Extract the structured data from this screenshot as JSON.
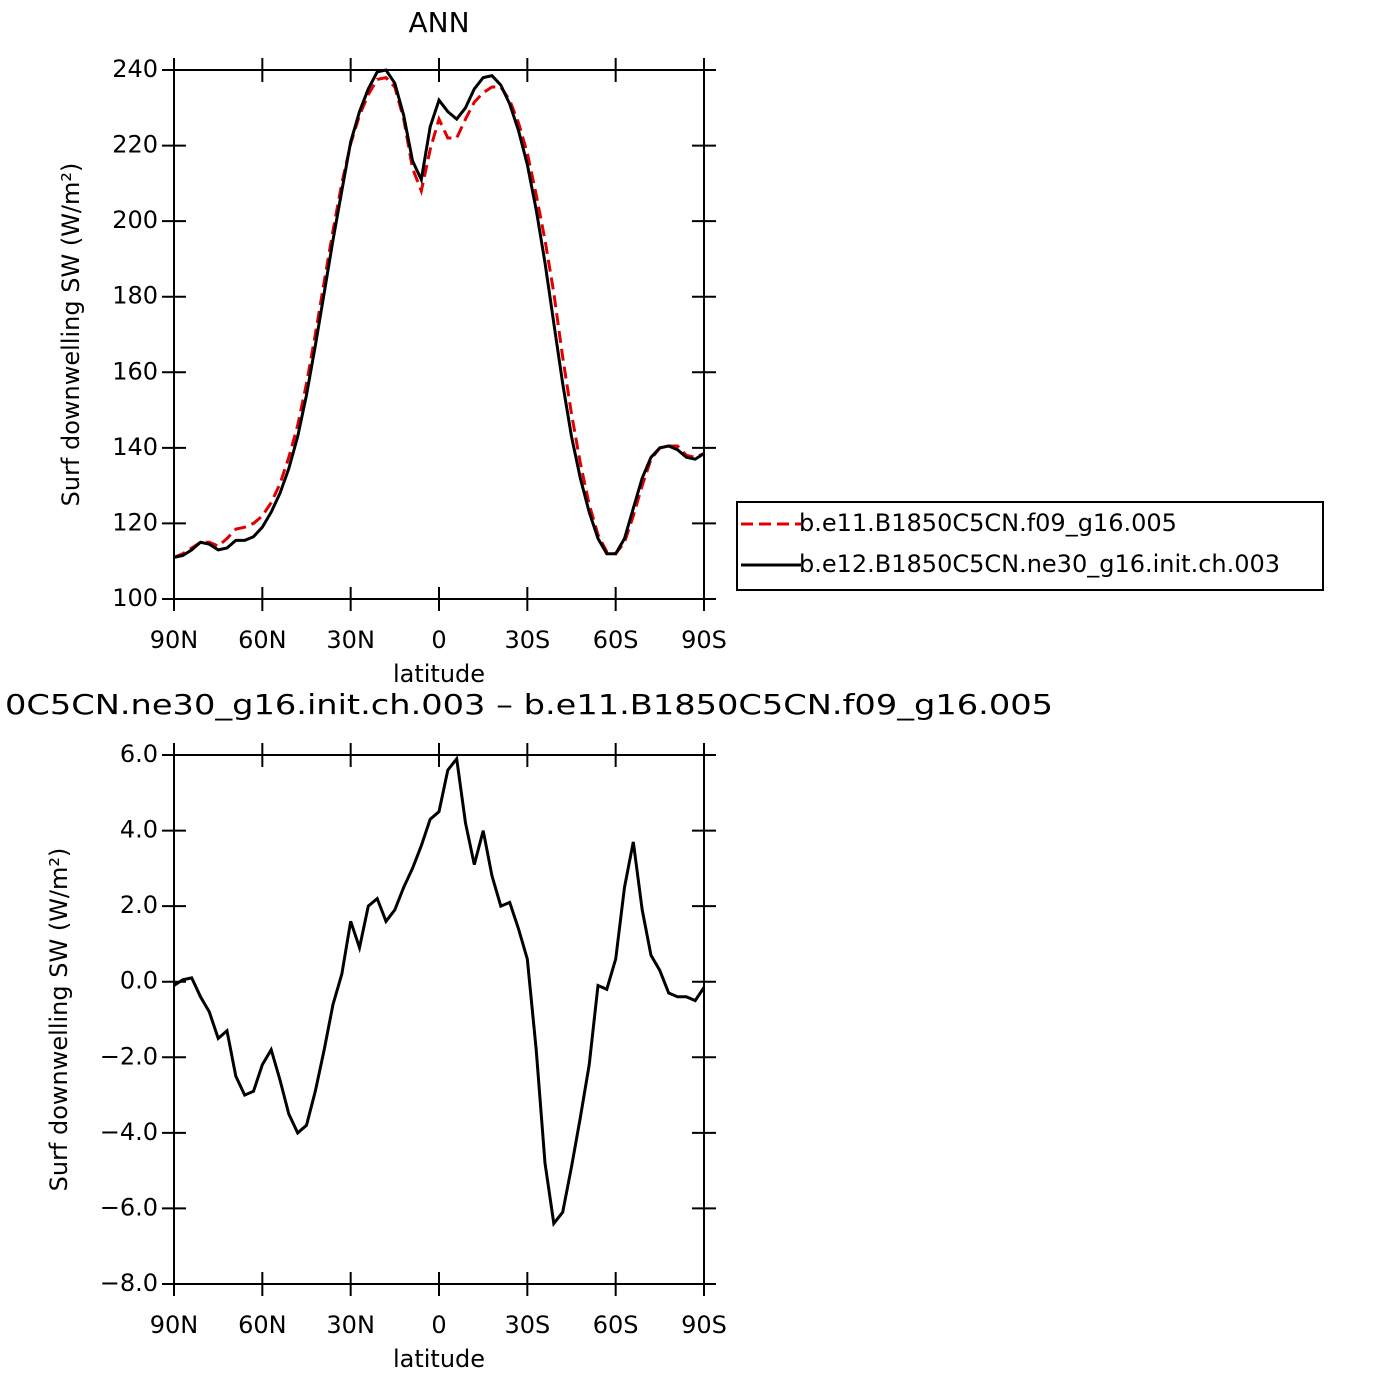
{
  "chart_data": [
    {
      "type": "line",
      "title": "ANN",
      "xlabel": "latitude",
      "ylabel": "Surf downwelling SW (W/m²)",
      "x": [
        90,
        87,
        84,
        81,
        78,
        75,
        72,
        69,
        66,
        63,
        60,
        57,
        54,
        51,
        48,
        45,
        42,
        39,
        36,
        33,
        30,
        27,
        24,
        21,
        18,
        15,
        12,
        9,
        6,
        3,
        0,
        -3,
        -6,
        -9,
        -12,
        -15,
        -18,
        -21,
        -24,
        -27,
        -30,
        -33,
        -36,
        -39,
        -42,
        -45,
        -48,
        -51,
        -54,
        -57,
        -60,
        -63,
        -66,
        -69,
        -72,
        -75,
        -78,
        -81,
        -84,
        -87,
        -90
      ],
      "series": [
        {
          "name": "b.e11.B1850C5CN.f09_g16.005",
          "color": "#e00000",
          "line_style": "dashed",
          "values": [
            111,
            112,
            113.5,
            115,
            115,
            114,
            116,
            118.5,
            119,
            120,
            122,
            125.5,
            130.5,
            137.5,
            146,
            157,
            170,
            184,
            197.5,
            210,
            220.5,
            228,
            233.5,
            237.5,
            238,
            235.5,
            227,
            214,
            208,
            219,
            227,
            222,
            222,
            227,
            231.5,
            234,
            235.5,
            235.5,
            232,
            226,
            218,
            207,
            195,
            181,
            164,
            149,
            136,
            125,
            117,
            112.5,
            112,
            115,
            122,
            130,
            137,
            140,
            140.5,
            140.5,
            138,
            137.5,
            138.5
          ]
        },
        {
          "name": "b.e12.B1850C5CN.ne30_g16.init.ch.003",
          "color": "#000000",
          "line_style": "solid",
          "values": [
            111,
            111.5,
            113,
            115,
            114.5,
            113,
            113.5,
            115.5,
            115.5,
            116.5,
            119,
            123,
            128,
            134.5,
            143,
            154,
            167,
            181,
            195,
            208,
            221,
            229,
            235,
            239.5,
            240,
            236.5,
            228,
            216,
            211,
            225,
            232,
            229,
            227,
            230,
            235,
            238,
            238.5,
            236,
            231,
            224,
            215,
            203,
            189,
            173,
            157,
            143,
            132,
            123,
            116,
            112,
            112,
            116,
            124,
            132,
            137.5,
            140,
            140.5,
            139.5,
            137.5,
            137,
            138.5
          ]
        }
      ],
      "xlim": [
        90,
        -90
      ],
      "xticks": [
        {
          "value": 90,
          "label": "90N"
        },
        {
          "value": 60,
          "label": "60N"
        },
        {
          "value": 30,
          "label": "30N"
        },
        0,
        {
          "value": -30,
          "label": "30S"
        },
        {
          "value": -60,
          "label": "60S"
        },
        {
          "value": -90,
          "label": "90S"
        }
      ],
      "ylim": [
        100,
        240
      ],
      "yticks": [
        100,
        120,
        140,
        160,
        180,
        200,
        220,
        240
      ],
      "legend": "right"
    },
    {
      "type": "line",
      "title": "0C5CN.ne30_g16.init.ch.003 – b.e11.B1850C5CN.f09_g16.005",
      "xlabel": "latitude",
      "ylabel": "Surf downwelling SW (W/m²)",
      "x": [
        90,
        87,
        84,
        81,
        78,
        75,
        72,
        69,
        66,
        63,
        60,
        57,
        54,
        51,
        48,
        45,
        42,
        39,
        36,
        33,
        30,
        27,
        24,
        21,
        18,
        15,
        12,
        9,
        6,
        3,
        0,
        -3,
        -6,
        -9,
        -12,
        -15,
        -18,
        -21,
        -24,
        -27,
        -30,
        -33,
        -36,
        -39,
        -42,
        -45,
        -48,
        -51,
        -54,
        -57,
        -60,
        -63,
        -66,
        -69,
        -72,
        -75,
        -78,
        -81,
        -84,
        -87,
        -90
      ],
      "series": [
        {
          "color": "#000000",
          "line_style": "solid",
          "values": [
            -0.1,
            0.05,
            0.1,
            -0.4,
            -0.8,
            -1.5,
            -1.3,
            -2.5,
            -3.0,
            -2.9,
            -2.2,
            -1.8,
            -2.6,
            -3.5,
            -4.0,
            -3.8,
            -2.9,
            -1.8,
            -0.6,
            0.2,
            1.6,
            0.9,
            2.0,
            2.2,
            1.6,
            1.9,
            2.5,
            3.0,
            3.6,
            4.3,
            4.5,
            5.6,
            5.9,
            4.2,
            3.1,
            4.0,
            2.8,
            2.0,
            2.1,
            1.4,
            0.6,
            -1.8,
            -4.8,
            -6.4,
            -6.1,
            -4.9,
            -3.6,
            -2.2,
            -0.1,
            -0.2,
            0.6,
            2.5,
            3.7,
            1.9,
            0.7,
            0.3,
            -0.3,
            -0.4,
            -0.4,
            -0.5,
            -0.15
          ]
        }
      ],
      "xlim": [
        90,
        -90
      ],
      "xticks": [
        {
          "value": 90,
          "label": "90N"
        },
        {
          "value": 60,
          "label": "60N"
        },
        {
          "value": 30,
          "label": "30N"
        },
        0,
        {
          "value": -30,
          "label": "30S"
        },
        {
          "value": -60,
          "label": "60S"
        },
        {
          "value": -90,
          "label": "90S"
        }
      ],
      "ylim": [
        -8,
        6
      ],
      "yticks": [
        {
          "value": -8,
          "label": "−8.0"
        },
        {
          "value": -6,
          "label": "−6.0"
        },
        {
          "value": -4,
          "label": "−4.0"
        },
        {
          "value": -2,
          "label": "−2.0"
        },
        {
          "value": 0,
          "label": "0.0"
        },
        {
          "value": 2,
          "label": "2.0"
        },
        {
          "value": 4,
          "label": "4.0"
        },
        {
          "value": 6,
          "label": "6.0"
        }
      ]
    }
  ]
}
